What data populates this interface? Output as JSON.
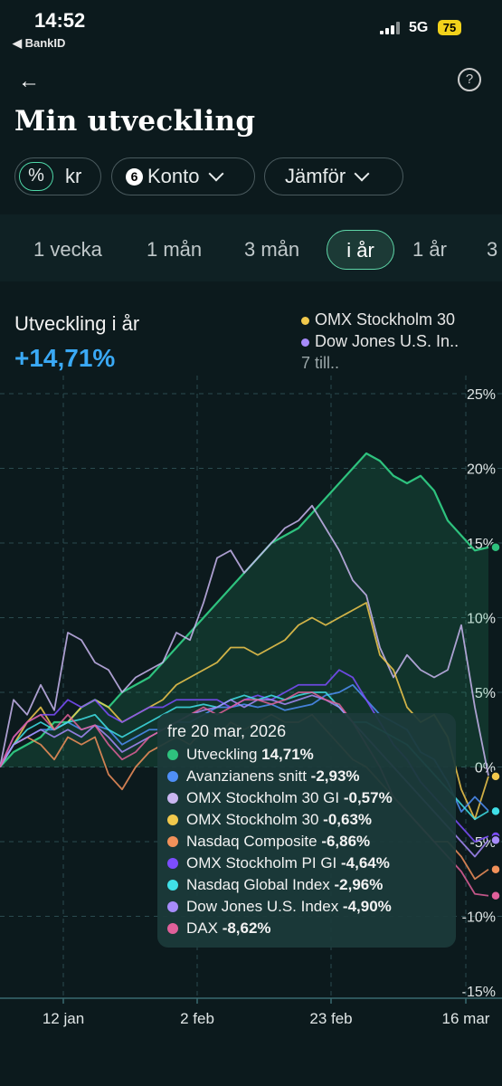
{
  "status": {
    "time": "14:52",
    "back_app": "BankID",
    "network": "5G",
    "battery": "75"
  },
  "header": {
    "title": "Min utveckling",
    "back_icon": "arrow-left-icon",
    "help_icon": "question-icon"
  },
  "filters": {
    "unit_selected": "%",
    "unit_other": "kr",
    "konto_count": "6",
    "konto_label": "Konto",
    "compare_label": "Jämför"
  },
  "periods": [
    "1 vecka",
    "1 mån",
    "3 mån",
    "i år",
    "1 år",
    "3"
  ],
  "active_period": "i år",
  "summary": {
    "label": "Utveckling i år",
    "value": "+14,71%"
  },
  "legend": {
    "items": [
      {
        "name": "OMX Stockholm 30",
        "color": "#f2c94c"
      },
      {
        "name": "Dow Jones U.S. In..",
        "color": "#a78bfa"
      }
    ],
    "more": "7 till.."
  },
  "tooltip": {
    "date": "fre 20 mar, 2026",
    "rows": [
      {
        "name": "Utveckling",
        "value": "14,71%",
        "color": "#2ec27e"
      },
      {
        "name": "Avanzianens snitt",
        "value": "-2,93%",
        "color": "#4f8ff7"
      },
      {
        "name": "OMX Stockholm 30 GI",
        "value": "-0,57%",
        "color": "#c9b6f0"
      },
      {
        "name": "OMX Stockholm 30",
        "value": "-0,63%",
        "color": "#f2c94c"
      },
      {
        "name": "Nasdaq Composite",
        "value": "-6,86%",
        "color": "#f2915a"
      },
      {
        "name": "OMX Stockholm PI GI",
        "value": "-4,64%",
        "color": "#7c4dff"
      },
      {
        "name": "Nasdaq Global Index",
        "value": "-2,96%",
        "color": "#40e0e8"
      },
      {
        "name": "Dow Jones U.S. Index",
        "value": "-4,90%",
        "color": "#a78bfa"
      },
      {
        "name": "DAX",
        "value": "-8,62%",
        "color": "#e0609a"
      }
    ]
  },
  "chart_data": {
    "type": "line",
    "x_ticks": [
      "12 jan",
      "2 feb",
      "23 feb",
      "16 mar"
    ],
    "y_ticks": [
      "25%",
      "20%",
      "15%",
      "10%",
      "5%",
      "0%",
      "-5%",
      "-10%",
      "-15%"
    ],
    "ylim": [
      -15,
      25
    ],
    "series": [
      {
        "name": "Utveckling",
        "color": "#2ec27e",
        "values": [
          0,
          1,
          1.5,
          2,
          3,
          3,
          4,
          4.5,
          4,
          5,
          5.5,
          6,
          7,
          8,
          9,
          10,
          11,
          12,
          13,
          14,
          15,
          15.5,
          16,
          17,
          18,
          19,
          20,
          21,
          20.5,
          19.5,
          19,
          19.5,
          18.5,
          16.5,
          15.5,
          14.5,
          14.71
        ]
      },
      {
        "name": "OMX Stockholm 30 GI",
        "color": "#c9b6f0",
        "values": [
          0,
          4.5,
          3.5,
          5.5,
          3.8,
          9,
          8.5,
          7,
          6.5,
          5,
          6,
          6.5,
          7,
          9,
          8.5,
          11,
          14,
          14.5,
          13,
          14,
          15,
          16,
          16.5,
          17.5,
          16,
          14.5,
          12.5,
          11.5,
          8,
          6,
          7.5,
          6.5,
          6,
          6.5,
          9.5,
          4,
          -0.57
        ]
      },
      {
        "name": "OMX Stockholm 30",
        "color": "#f2c94c",
        "values": [
          0,
          1.5,
          3,
          4,
          2.5,
          3,
          4,
          4.5,
          4,
          3,
          3.5,
          4,
          4.5,
          5.5,
          6,
          6.5,
          7,
          8,
          8,
          7.5,
          8,
          8.5,
          9.5,
          10,
          9.5,
          10,
          10.5,
          11,
          7.5,
          6.5,
          4,
          3,
          3.5,
          2,
          -1.5,
          -3.5,
          -0.63
        ]
      },
      {
        "name": "Avanzianens snitt",
        "color": "#4f8ff7",
        "values": [
          0,
          1.5,
          2,
          2.5,
          2.5,
          3,
          2.5,
          2.8,
          2.5,
          1.5,
          2,
          2.5,
          2.5,
          3,
          3,
          3.5,
          4,
          4,
          4.2,
          4,
          4.2,
          3.8,
          4,
          4.2,
          4.8,
          5,
          5.5,
          4.5,
          3.5,
          3,
          2.5,
          1,
          0.5,
          -1,
          -3,
          -2,
          -2.93
        ]
      },
      {
        "name": "Nasdaq Composite",
        "color": "#f2915a",
        "values": [
          0,
          1.5,
          2,
          1.5,
          0.5,
          2,
          1.5,
          2,
          -0.5,
          -1.5,
          0,
          1,
          1.5,
          2,
          1.5,
          2.5,
          2,
          3,
          2.5,
          3,
          3.5,
          3,
          3,
          3.5,
          2.5,
          1.5,
          0.5,
          0,
          -1,
          -2,
          -3,
          -4,
          -5,
          -5,
          -6,
          -7.5,
          -6.86
        ]
      },
      {
        "name": "OMX Stockholm PI GI",
        "color": "#7c4dff",
        "values": [
          0,
          2,
          3,
          3.5,
          3.5,
          4.5,
          4,
          4.5,
          3.5,
          3,
          3.5,
          4,
          4,
          4.5,
          4.5,
          4.5,
          4.5,
          4,
          4.5,
          4.8,
          4.5,
          5,
          5.5,
          5.5,
          5.5,
          6.5,
          6,
          4.5,
          3,
          1.5,
          0.5,
          -1,
          -2,
          -3,
          -4,
          -5,
          -4.64
        ]
      },
      {
        "name": "Nasdaq Global Index",
        "color": "#40e0e8",
        "values": [
          0,
          1.5,
          2.5,
          3,
          2.5,
          3,
          3.2,
          3.5,
          2.5,
          2,
          2.5,
          3,
          3.5,
          4,
          4,
          4.2,
          4,
          4.5,
          4.8,
          4.5,
          4.8,
          4.5,
          4.8,
          5,
          5,
          4,
          3,
          3,
          2.5,
          2,
          1.5,
          0.5,
          -0.5,
          -1.5,
          -2.5,
          -3.5,
          -2.96
        ]
      },
      {
        "name": "Dow Jones U.S. Index",
        "color": "#a78bfa",
        "values": [
          0,
          1.5,
          2,
          2.5,
          2,
          2.5,
          2,
          2.8,
          2,
          1,
          1.5,
          2,
          2.5,
          3,
          3.5,
          3.8,
          4,
          4.5,
          4,
          4.5,
          4.5,
          4.2,
          4.5,
          4.8,
          4.5,
          4,
          3,
          2,
          1,
          0,
          -1,
          -2,
          -3,
          -4,
          -5,
          -6,
          -4.9
        ]
      },
      {
        "name": "DAX",
        "color": "#e0609a",
        "values": [
          0,
          2,
          3,
          3.5,
          2.5,
          3.5,
          2.5,
          2.8,
          1.5,
          0.5,
          1,
          2,
          2.5,
          3,
          3.5,
          4,
          3.5,
          4,
          4.5,
          4.5,
          4.2,
          4.5,
          5,
          5,
          4.5,
          4.2,
          3,
          1.5,
          0,
          -2,
          -3,
          -4,
          -5,
          -6,
          -7,
          -8.5,
          -8.62
        ]
      }
    ]
  }
}
